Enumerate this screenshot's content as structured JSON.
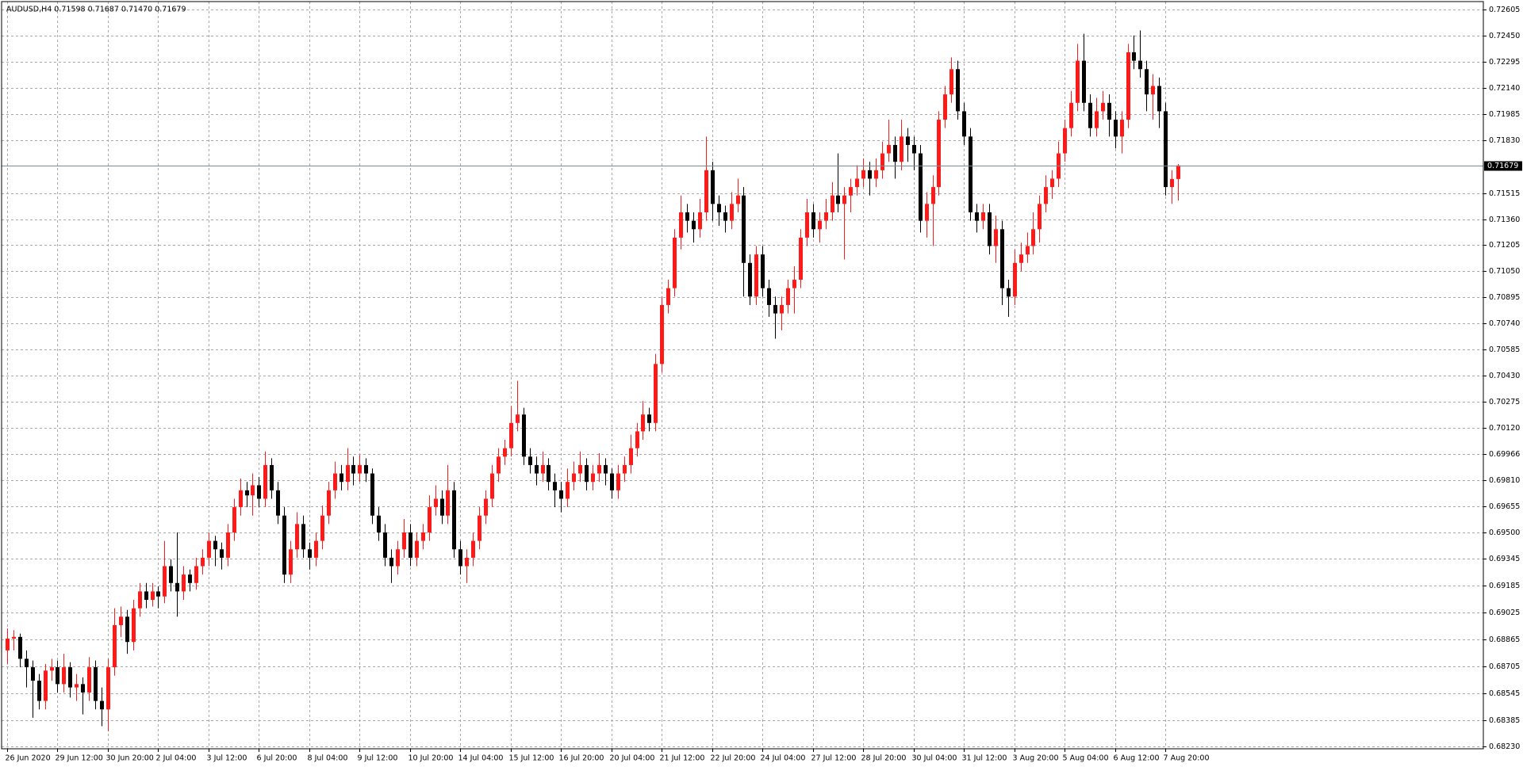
{
  "chart_data": {
    "type": "candlestick",
    "header": "AUDUSD,H4  0.71598 0.71687 0.71470 0.71679",
    "up_color": "#ff1a1a",
    "down_color": "#000000",
    "grid": true,
    "current_price": 0.71679,
    "ylim": [
      0.68216,
      0.72651
    ],
    "yticks": [
      {
        "value": 0.72605,
        "label": "0.72605"
      },
      {
        "value": 0.7245,
        "label": "0.72450"
      },
      {
        "value": 0.72295,
        "label": "0.72295"
      },
      {
        "value": 0.7214,
        "label": "0.72140"
      },
      {
        "value": 0.71985,
        "label": "0.71985"
      },
      {
        "value": 0.7183,
        "label": "0.71830"
      },
      {
        "value": 0.71515,
        "label": "0.71515"
      },
      {
        "value": 0.7136,
        "label": "0.71360"
      },
      {
        "value": 0.71205,
        "label": "0.71205"
      },
      {
        "value": 0.7105,
        "label": "0.71050"
      },
      {
        "value": 0.70895,
        "label": "0.70895"
      },
      {
        "value": 0.7074,
        "label": "0.70740"
      },
      {
        "value": 0.70585,
        "label": "0.70585"
      },
      {
        "value": 0.7043,
        "label": "0.70430"
      },
      {
        "value": 0.70275,
        "label": "0.70275"
      },
      {
        "value": 0.7012,
        "label": "0.70120"
      },
      {
        "value": 0.69966,
        "label": "0.69966"
      },
      {
        "value": 0.6981,
        "label": "0.69810"
      },
      {
        "value": 0.69655,
        "label": "0.69655"
      },
      {
        "value": 0.695,
        "label": "0.69500"
      },
      {
        "value": 0.69345,
        "label": "0.69345"
      },
      {
        "value": 0.69185,
        "label": "0.69185"
      },
      {
        "value": 0.69025,
        "label": "0.69025"
      },
      {
        "value": 0.68865,
        "label": "0.68865"
      },
      {
        "value": 0.68705,
        "label": "0.68705"
      },
      {
        "value": 0.68545,
        "label": "0.68545"
      },
      {
        "value": 0.68385,
        "label": "0.68385"
      },
      {
        "value": 0.6823,
        "label": "0.68230"
      }
    ],
    "categories": [
      "26 Jun 2020",
      null,
      null,
      null,
      null,
      null,
      null,
      null,
      "29 Jun 12:00",
      null,
      null,
      null,
      null,
      null,
      null,
      null,
      "30 Jun 20:00",
      null,
      null,
      null,
      null,
      null,
      null,
      null,
      "2 Jul 04:00",
      null,
      null,
      null,
      null,
      null,
      null,
      null,
      "3 Jul 12:00",
      null,
      null,
      null,
      null,
      null,
      null,
      null,
      "6 Jul 20:00",
      null,
      null,
      null,
      null,
      null,
      null,
      null,
      "8 Jul 04:00",
      null,
      null,
      null,
      null,
      null,
      null,
      null,
      "9 Jul 12:00",
      null,
      null,
      null,
      null,
      null,
      null,
      null,
      "10 Jul 20:00",
      null,
      null,
      null,
      null,
      null,
      null,
      null,
      "14 Jul 04:00",
      null,
      null,
      null,
      null,
      null,
      null,
      null,
      "15 Jul 12:00",
      null,
      null,
      null,
      null,
      null,
      null,
      null,
      "16 Jul 20:00",
      null,
      null,
      null,
      null,
      null,
      null,
      null,
      "20 Jul 04:00",
      null,
      null,
      null,
      null,
      null,
      null,
      null,
      "21 Jul 12:00",
      null,
      null,
      null,
      null,
      null,
      null,
      null,
      "22 Jul 20:00",
      null,
      null,
      null,
      null,
      null,
      null,
      null,
      "24 Jul 04:00",
      null,
      null,
      null,
      null,
      null,
      null,
      null,
      "27 Jul 12:00",
      null,
      null,
      null,
      null,
      null,
      null,
      null,
      "28 Jul 20:00",
      null,
      null,
      null,
      null,
      null,
      null,
      null,
      "30 Jul 04:00",
      null,
      null,
      null,
      null,
      null,
      null,
      null,
      "31 Jul 12:00",
      null,
      null,
      null,
      null,
      null,
      null,
      null,
      "3 Aug 20:00",
      null,
      null,
      null,
      null,
      null,
      null,
      null,
      "5 Aug 04:00",
      null,
      null,
      null,
      null,
      null,
      null,
      null,
      "6 Aug 12:00",
      null,
      null,
      null,
      null,
      null,
      null,
      null,
      "7 Aug 20:00",
      null,
      null
    ],
    "values": [
      [
        0.688,
        0.6893,
        0.6872,
        0.6887
      ],
      [
        0.6887,
        0.6892,
        0.688,
        0.6888
      ],
      [
        0.6888,
        0.689,
        0.687,
        0.6875
      ],
      [
        0.6875,
        0.688,
        0.6858,
        0.687
      ],
      [
        0.687,
        0.6874,
        0.684,
        0.6862
      ],
      [
        0.6862,
        0.6866,
        0.6845,
        0.685
      ],
      [
        0.685,
        0.6872,
        0.6845,
        0.6868
      ],
      [
        0.6868,
        0.6875,
        0.6862,
        0.687
      ],
      [
        0.687,
        0.6874,
        0.6855,
        0.686
      ],
      [
        0.686,
        0.6878,
        0.6855,
        0.687
      ],
      [
        0.687,
        0.6873,
        0.6852,
        0.6858
      ],
      [
        0.6858,
        0.6866,
        0.685,
        0.686
      ],
      [
        0.686,
        0.6864,
        0.6842,
        0.6855
      ],
      [
        0.6855,
        0.6876,
        0.685,
        0.687
      ],
      [
        0.687,
        0.6874,
        0.6845,
        0.685
      ],
      [
        0.685,
        0.6858,
        0.6835,
        0.6845
      ],
      [
        0.6845,
        0.6875,
        0.6832,
        0.687
      ],
      [
        0.687,
        0.6905,
        0.6865,
        0.6895
      ],
      [
        0.6895,
        0.6906,
        0.6888,
        0.69
      ],
      [
        0.69,
        0.6904,
        0.6878,
        0.6885
      ],
      [
        0.6885,
        0.691,
        0.688,
        0.6905
      ],
      [
        0.6905,
        0.692,
        0.69,
        0.6915
      ],
      [
        0.6915,
        0.692,
        0.6905,
        0.691
      ],
      [
        0.691,
        0.692,
        0.6906,
        0.6915
      ],
      [
        0.6915,
        0.6918,
        0.6905,
        0.6912
      ],
      [
        0.6912,
        0.6945,
        0.6908,
        0.693
      ],
      [
        0.693,
        0.6934,
        0.6915,
        0.692
      ],
      [
        0.692,
        0.695,
        0.69,
        0.6915
      ],
      [
        0.6915,
        0.693,
        0.691,
        0.6925
      ],
      [
        0.6925,
        0.6928,
        0.6915,
        0.692
      ],
      [
        0.692,
        0.6935,
        0.6916,
        0.693
      ],
      [
        0.693,
        0.694,
        0.6925,
        0.6935
      ],
      [
        0.6935,
        0.695,
        0.693,
        0.6945
      ],
      [
        0.6945,
        0.6948,
        0.693,
        0.694
      ],
      [
        0.694,
        0.6944,
        0.6928,
        0.6935
      ],
      [
        0.6935,
        0.6955,
        0.693,
        0.695
      ],
      [
        0.695,
        0.697,
        0.6945,
        0.6965
      ],
      [
        0.6965,
        0.6982,
        0.696,
        0.6975
      ],
      [
        0.6975,
        0.698,
        0.6965,
        0.6972
      ],
      [
        0.6972,
        0.6985,
        0.696,
        0.6978
      ],
      [
        0.6978,
        0.6983,
        0.6965,
        0.697
      ],
      [
        0.697,
        0.6998,
        0.6965,
        0.699
      ],
      [
        0.699,
        0.6994,
        0.697,
        0.6975
      ],
      [
        0.6975,
        0.698,
        0.6955,
        0.696
      ],
      [
        0.696,
        0.6965,
        0.692,
        0.6925
      ],
      [
        0.6925,
        0.6945,
        0.692,
        0.694
      ],
      [
        0.694,
        0.6962,
        0.6935,
        0.6955
      ],
      [
        0.6955,
        0.696,
        0.6935,
        0.694
      ],
      [
        0.694,
        0.6944,
        0.6928,
        0.6935
      ],
      [
        0.6935,
        0.695,
        0.693,
        0.6945
      ],
      [
        0.6945,
        0.6966,
        0.694,
        0.696
      ],
      [
        0.696,
        0.698,
        0.6955,
        0.6975
      ],
      [
        0.6975,
        0.6992,
        0.697,
        0.6985
      ],
      [
        0.6985,
        0.699,
        0.6975,
        0.698
      ],
      [
        0.698,
        0.7,
        0.6975,
        0.699
      ],
      [
        0.699,
        0.6995,
        0.6978,
        0.6985
      ],
      [
        0.6985,
        0.6996,
        0.698,
        0.699
      ],
      [
        0.699,
        0.6994,
        0.698,
        0.6985
      ],
      [
        0.6985,
        0.6988,
        0.6955,
        0.696
      ],
      [
        0.696,
        0.6965,
        0.6945,
        0.695
      ],
      [
        0.695,
        0.6955,
        0.693,
        0.6935
      ],
      [
        0.6935,
        0.694,
        0.692,
        0.693
      ],
      [
        0.693,
        0.6945,
        0.6925,
        0.694
      ],
      [
        0.694,
        0.6958,
        0.6935,
        0.695
      ],
      [
        0.695,
        0.6955,
        0.693,
        0.6935
      ],
      [
        0.6935,
        0.695,
        0.693,
        0.6945
      ],
      [
        0.6945,
        0.6955,
        0.694,
        0.695
      ],
      [
        0.695,
        0.6972,
        0.6945,
        0.6965
      ],
      [
        0.6965,
        0.6978,
        0.696,
        0.697
      ],
      [
        0.697,
        0.6975,
        0.6955,
        0.696
      ],
      [
        0.696,
        0.699,
        0.6955,
        0.6975
      ],
      [
        0.6975,
        0.698,
        0.6935,
        0.694
      ],
      [
        0.694,
        0.6945,
        0.6925,
        0.693
      ],
      [
        0.693,
        0.694,
        0.692,
        0.6935
      ],
      [
        0.6935,
        0.695,
        0.693,
        0.6945
      ],
      [
        0.6945,
        0.6965,
        0.694,
        0.696
      ],
      [
        0.696,
        0.6975,
        0.6955,
        0.697
      ],
      [
        0.697,
        0.699,
        0.6965,
        0.6985
      ],
      [
        0.6985,
        0.7,
        0.698,
        0.6995
      ],
      [
        0.6995,
        0.7005,
        0.699,
        0.7
      ],
      [
        0.7,
        0.7025,
        0.6995,
        0.7015
      ],
      [
        0.7015,
        0.704,
        0.701,
        0.702
      ],
      [
        0.702,
        0.7024,
        0.699,
        0.6995
      ],
      [
        0.6995,
        0.7,
        0.6985,
        0.699
      ],
      [
        0.699,
        0.6995,
        0.6978,
        0.6985
      ],
      [
        0.6985,
        0.6998,
        0.698,
        0.699
      ],
      [
        0.699,
        0.6994,
        0.6975,
        0.698
      ],
      [
        0.698,
        0.6985,
        0.6965,
        0.6975
      ],
      [
        0.6975,
        0.698,
        0.6962,
        0.697
      ],
      [
        0.697,
        0.6988,
        0.6965,
        0.698
      ],
      [
        0.698,
        0.6992,
        0.6975,
        0.6985
      ],
      [
        0.6985,
        0.6998,
        0.698,
        0.699
      ],
      [
        0.699,
        0.6994,
        0.6975,
        0.698
      ],
      [
        0.698,
        0.699,
        0.6975,
        0.6985
      ],
      [
        0.6985,
        0.6997,
        0.698,
        0.699
      ],
      [
        0.699,
        0.6994,
        0.6978,
        0.6985
      ],
      [
        0.6985,
        0.6988,
        0.697,
        0.6975
      ],
      [
        0.6975,
        0.699,
        0.697,
        0.6985
      ],
      [
        0.6985,
        0.6995,
        0.698,
        0.699
      ],
      [
        0.699,
        0.7008,
        0.6985,
        0.7
      ],
      [
        0.7,
        0.7015,
        0.6995,
        0.701
      ],
      [
        0.701,
        0.7028,
        0.7005,
        0.702
      ],
      [
        0.702,
        0.7024,
        0.701,
        0.7015
      ],
      [
        0.7015,
        0.7056,
        0.701,
        0.705
      ],
      [
        0.705,
        0.709,
        0.7045,
        0.7085
      ],
      [
        0.7085,
        0.71,
        0.708,
        0.7095
      ],
      [
        0.7095,
        0.713,
        0.709,
        0.7125
      ],
      [
        0.7125,
        0.715,
        0.7118,
        0.714
      ],
      [
        0.714,
        0.7145,
        0.7128,
        0.7135
      ],
      [
        0.7135,
        0.714,
        0.7122,
        0.713
      ],
      [
        0.713,
        0.7148,
        0.7125,
        0.714
      ],
      [
        0.714,
        0.7185,
        0.7135,
        0.7165
      ],
      [
        0.7165,
        0.717,
        0.7135,
        0.7145
      ],
      [
        0.7145,
        0.715,
        0.7132,
        0.714
      ],
      [
        0.714,
        0.7144,
        0.7128,
        0.7135
      ],
      [
        0.7135,
        0.7152,
        0.713,
        0.7145
      ],
      [
        0.7145,
        0.716,
        0.714,
        0.715
      ],
      [
        0.715,
        0.7155,
        0.709,
        0.711
      ],
      [
        0.711,
        0.7115,
        0.7085,
        0.709
      ],
      [
        0.709,
        0.712,
        0.7085,
        0.7115
      ],
      [
        0.7115,
        0.712,
        0.709,
        0.7095
      ],
      [
        0.7095,
        0.71,
        0.7078,
        0.7085
      ],
      [
        0.7085,
        0.709,
        0.7065,
        0.708
      ],
      [
        0.708,
        0.709,
        0.707,
        0.7085
      ],
      [
        0.7085,
        0.71,
        0.708,
        0.7095
      ],
      [
        0.7095,
        0.7108,
        0.708,
        0.71
      ],
      [
        0.71,
        0.713,
        0.7095,
        0.7125
      ],
      [
        0.7125,
        0.7148,
        0.712,
        0.714
      ],
      [
        0.714,
        0.7145,
        0.7125,
        0.713
      ],
      [
        0.713,
        0.714,
        0.7122,
        0.7135
      ],
      [
        0.7135,
        0.7148,
        0.713,
        0.714
      ],
      [
        0.714,
        0.7158,
        0.7135,
        0.715
      ],
      [
        0.715,
        0.7175,
        0.714,
        0.7145
      ],
      [
        0.7145,
        0.7155,
        0.7112,
        0.715
      ],
      [
        0.715,
        0.716,
        0.714,
        0.7155
      ],
      [
        0.7155,
        0.7168,
        0.715,
        0.716
      ],
      [
        0.716,
        0.7172,
        0.7155,
        0.7165
      ],
      [
        0.7165,
        0.717,
        0.715,
        0.716
      ],
      [
        0.716,
        0.7172,
        0.7155,
        0.7165
      ],
      [
        0.7165,
        0.7182,
        0.716,
        0.7175
      ],
      [
        0.7175,
        0.7195,
        0.717,
        0.718
      ],
      [
        0.718,
        0.7185,
        0.716,
        0.717
      ],
      [
        0.717,
        0.7195,
        0.7165,
        0.7185
      ],
      [
        0.7185,
        0.719,
        0.717,
        0.718
      ],
      [
        0.718,
        0.7185,
        0.7165,
        0.7175
      ],
      [
        0.7175,
        0.718,
        0.7128,
        0.7135
      ],
      [
        0.7135,
        0.7152,
        0.7125,
        0.7145
      ],
      [
        0.7145,
        0.7162,
        0.712,
        0.7155
      ],
      [
        0.7155,
        0.72,
        0.715,
        0.7195
      ],
      [
        0.7195,
        0.7215,
        0.719,
        0.721
      ],
      [
        0.721,
        0.7232,
        0.7205,
        0.7225
      ],
      [
        0.7225,
        0.723,
        0.7195,
        0.72
      ],
      [
        0.72,
        0.7205,
        0.718,
        0.7185
      ],
      [
        0.7185,
        0.719,
        0.7135,
        0.714
      ],
      [
        0.714,
        0.7145,
        0.7128,
        0.7135
      ],
      [
        0.7135,
        0.7145,
        0.713,
        0.714
      ],
      [
        0.714,
        0.7145,
        0.7115,
        0.712
      ],
      [
        0.712,
        0.7138,
        0.711,
        0.713
      ],
      [
        0.713,
        0.7135,
        0.7085,
        0.7095
      ],
      [
        0.7095,
        0.71,
        0.7078,
        0.709
      ],
      [
        0.709,
        0.7118,
        0.7085,
        0.711
      ],
      [
        0.711,
        0.7122,
        0.7105,
        0.7115
      ],
      [
        0.7115,
        0.7128,
        0.711,
        0.712
      ],
      [
        0.712,
        0.714,
        0.7115,
        0.713
      ],
      [
        0.713,
        0.715,
        0.7122,
        0.7145
      ],
      [
        0.7145,
        0.7162,
        0.714,
        0.7155
      ],
      [
        0.7155,
        0.7165,
        0.7148,
        0.716
      ],
      [
        0.716,
        0.7182,
        0.7155,
        0.7175
      ],
      [
        0.7175,
        0.7195,
        0.717,
        0.719
      ],
      [
        0.719,
        0.7212,
        0.7185,
        0.7205
      ],
      [
        0.7205,
        0.724,
        0.72,
        0.723
      ],
      [
        0.723,
        0.7246,
        0.72,
        0.7205
      ],
      [
        0.7205,
        0.721,
        0.7185,
        0.719
      ],
      [
        0.719,
        0.7208,
        0.7185,
        0.72
      ],
      [
        0.72,
        0.7212,
        0.7195,
        0.7205
      ],
      [
        0.7205,
        0.721,
        0.7185,
        0.7195
      ],
      [
        0.7195,
        0.72,
        0.7178,
        0.7185
      ],
      [
        0.7185,
        0.72,
        0.7175,
        0.7195
      ],
      [
        0.7195,
        0.724,
        0.719,
        0.7235
      ],
      [
        0.7235,
        0.7245,
        0.7225,
        0.723
      ],
      [
        0.723,
        0.7248,
        0.722,
        0.7225
      ],
      [
        0.7225,
        0.723,
        0.72,
        0.721
      ],
      [
        0.721,
        0.7222,
        0.7195,
        0.7215
      ],
      [
        0.7215,
        0.722,
        0.719,
        0.72
      ],
      [
        0.72,
        0.7205,
        0.715,
        0.7155
      ],
      [
        0.7155,
        0.7165,
        0.7145,
        0.71598
      ],
      [
        0.71598,
        0.71687,
        0.7147,
        0.71679
      ]
    ]
  }
}
